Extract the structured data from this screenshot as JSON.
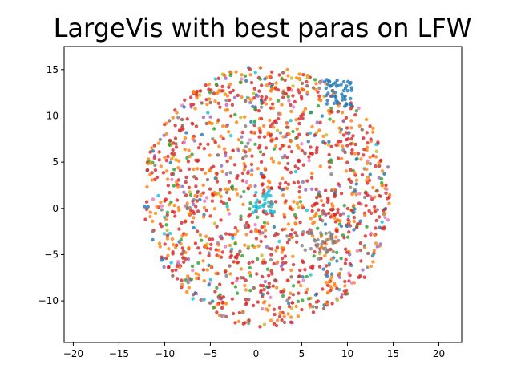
{
  "chart_data": {
    "type": "scatter",
    "title": "LargeVis with best paras on LFW",
    "xlabel": "",
    "ylabel": "",
    "xlim": [
      -21,
      22.5
    ],
    "ylim": [
      -14.5,
      17.5
    ],
    "xticks": [
      -20,
      -15,
      -10,
      -5,
      0,
      5,
      10,
      15,
      20
    ],
    "yticks": [
      -10,
      -5,
      0,
      5,
      10,
      15
    ],
    "grid": false,
    "legend": "none",
    "marker_alpha": 0.8,
    "cloud": {
      "shape": "disc",
      "center": [
        1.2,
        1.3
      ],
      "radius": 13.6,
      "approx_point_count": 1500,
      "note": "dense cloud of small points; individual coordinates not recoverable from the image"
    },
    "colors": {
      "red": "#d62728",
      "orange": "#ff7f0e",
      "blue": "#1f77b4",
      "green": "#2ca02c",
      "purple": "#9467bd",
      "brown": "#8c564b",
      "pink": "#e377c2",
      "gray": "#7f7f7f",
      "olive": "#bcbd22",
      "cyan": "#17becf"
    },
    "clusters": [
      {
        "color": "blue",
        "x_range": [
          7.5,
          10.5
        ],
        "y_range": [
          11.0,
          14.0
        ],
        "note": "dense blue group at upper right"
      },
      {
        "color": "gray",
        "x_range": [
          5.0,
          8.5
        ],
        "y_range": [
          -5.0,
          -2.5
        ],
        "note": "gray group lower right of center"
      },
      {
        "color": "cyan",
        "x_range": [
          -0.5,
          2.0
        ],
        "y_range": [
          -0.5,
          2.0
        ],
        "note": "cyan group near center"
      }
    ]
  }
}
